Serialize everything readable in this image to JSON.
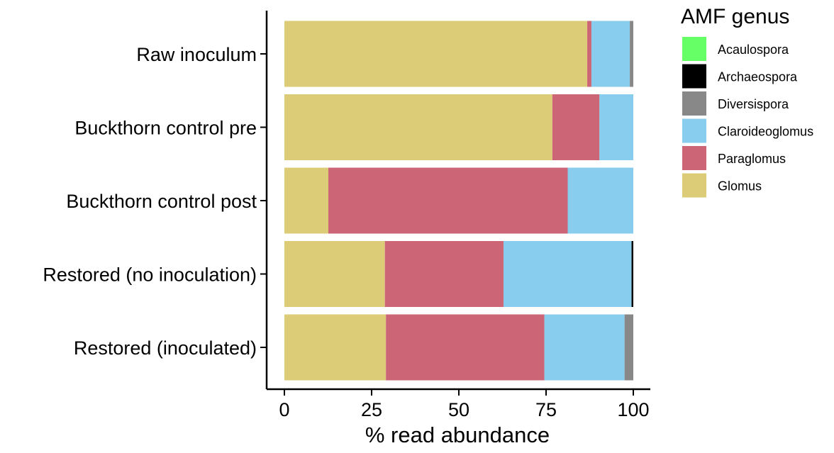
{
  "chart_data": {
    "type": "bar",
    "orientation": "horizontal",
    "stacked": true,
    "categories": [
      "Raw inoculum",
      "Buckthorn control pre",
      "Buckthorn control post",
      "Restored (no inoculation)",
      "Restored (inoculated)"
    ],
    "series": [
      {
        "name": "Glomus",
        "color": "#DDCC77",
        "values": [
          86.8,
          76.8,
          12.6,
          28.8,
          29.1
        ]
      },
      {
        "name": "Paraglomus",
        "color": "#CC6677",
        "values": [
          1.2,
          13.5,
          68.6,
          34.0,
          45.4
        ]
      },
      {
        "name": "Claroideoglomus",
        "color": "#88CCEE",
        "values": [
          11.0,
          9.7,
          18.8,
          36.7,
          23.0
        ]
      },
      {
        "name": "Diversispora",
        "color": "#888888",
        "values": [
          1.0,
          0,
          0,
          0,
          2.5
        ]
      },
      {
        "name": "Archaeospora",
        "color": "#000000",
        "values": [
          0,
          0,
          0,
          0.5,
          0
        ]
      },
      {
        "name": "Acaulospora",
        "color": "#66FF66",
        "values": [
          0,
          0,
          0,
          0,
          0
        ]
      }
    ],
    "legend_order": [
      "Acaulospora",
      "Archaeospora",
      "Diversispora",
      "Claroideoglomus",
      "Paraglomus",
      "Glomus"
    ],
    "legend_title": "AMF genus",
    "legend_position": "right",
    "xlabel": "% read abundance",
    "ylabel": "",
    "xlim": [
      0,
      100
    ],
    "xticks": [
      "0",
      "25",
      "50",
      "75",
      "100"
    ],
    "grid": false
  }
}
